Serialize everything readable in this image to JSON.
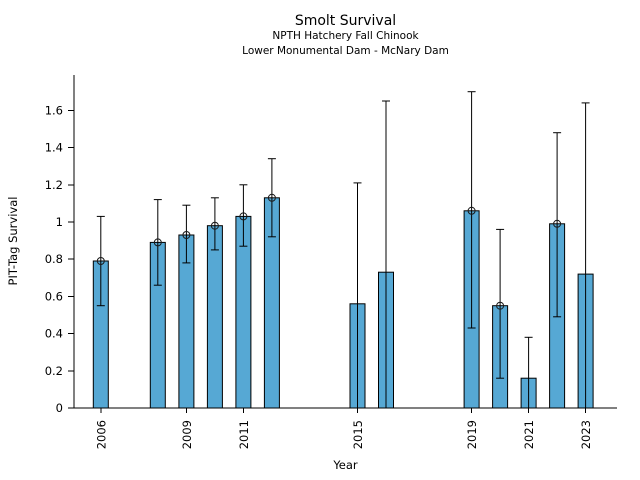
{
  "chart_data": {
    "type": "bar",
    "title": "Smolt Survival",
    "subtitles": [
      "NPTH Hatchery Fall Chinook",
      "Lower Monumental Dam - McNary Dam"
    ],
    "xlabel": "Year",
    "ylabel": "PIT-Tag Survival",
    "points": [
      {
        "year": 2006,
        "value": 0.79,
        "err_low": 0.55,
        "err_high": 1.03,
        "marker": true
      },
      {
        "year": 2008,
        "value": 0.89,
        "err_low": 0.66,
        "err_high": 1.12,
        "marker": true
      },
      {
        "year": 2009,
        "value": 0.93,
        "err_low": 0.78,
        "err_high": 1.09,
        "marker": true
      },
      {
        "year": 2010,
        "value": 0.98,
        "err_low": 0.85,
        "err_high": 1.13,
        "marker": true
      },
      {
        "year": 2011,
        "value": 1.03,
        "err_low": 0.87,
        "err_high": 1.2,
        "marker": true
      },
      {
        "year": 2012,
        "value": 1.13,
        "err_low": 0.92,
        "err_high": 1.34,
        "marker": true
      },
      {
        "year": 2015,
        "value": 0.56,
        "err_low": 0.0,
        "err_high": 1.21,
        "marker": false
      },
      {
        "year": 2016,
        "value": 0.73,
        "err_low": 0.0,
        "err_high": 1.65,
        "marker": false
      },
      {
        "year": 2019,
        "value": 1.06,
        "err_low": 0.43,
        "err_high": 1.7,
        "marker": true
      },
      {
        "year": 2020,
        "value": 0.55,
        "err_low": 0.16,
        "err_high": 0.96,
        "marker": true
      },
      {
        "year": 2021,
        "value": 0.16,
        "err_low": 0.0,
        "err_high": 0.38,
        "marker": false
      },
      {
        "year": 2022,
        "value": 0.99,
        "err_low": 0.49,
        "err_high": 1.48,
        "marker": true
      },
      {
        "year": 2023,
        "value": 0.72,
        "err_low": 0.0,
        "err_high": 1.64,
        "marker": false
      }
    ],
    "x_ticks": [
      "2006",
      "2009",
      "2011",
      "2015",
      "2019",
      "2021",
      "2023"
    ],
    "y_ticks": [
      "0",
      "0.2",
      "0.4",
      "0.6",
      "0.8",
      "1",
      "1.2",
      "1.4",
      "1.6"
    ],
    "xlim": [
      2005.06,
      2024.1
    ],
    "ylim": [
      0,
      1.79
    ],
    "grid": false,
    "legend": null,
    "bar_color": "#56a8d4",
    "bar_edge_color": "#000000",
    "error_color": "#000000",
    "marker_style": "open-circle",
    "background": "#ffffff"
  }
}
